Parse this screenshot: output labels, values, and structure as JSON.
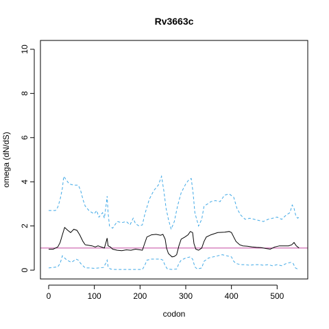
{
  "chart_data": {
    "type": "line",
    "title": "Rv3663c",
    "xlabel": "codon",
    "ylabel": "omega (dN/dS)",
    "xlim": [
      -18,
      567
    ],
    "ylim": [
      -0.4,
      10.4
    ],
    "xticks": [
      0,
      100,
      200,
      300,
      400,
      500
    ],
    "yticks": [
      0,
      2,
      4,
      6,
      8,
      10
    ],
    "grid": false,
    "reference_line": {
      "y": 1,
      "color": "#c2479f"
    },
    "series": [
      {
        "style": "solid",
        "color": "#000000",
        "points": [
          [
            0,
            0.95
          ],
          [
            10,
            0.95
          ],
          [
            20,
            1.05
          ],
          [
            25,
            1.25
          ],
          [
            30,
            1.6
          ],
          [
            35,
            1.93
          ],
          [
            42,
            1.8
          ],
          [
            48,
            1.7
          ],
          [
            55,
            1.85
          ],
          [
            62,
            1.8
          ],
          [
            68,
            1.6
          ],
          [
            75,
            1.3
          ],
          [
            80,
            1.15
          ],
          [
            88,
            1.12
          ],
          [
            95,
            1.1
          ],
          [
            102,
            1.05
          ],
          [
            108,
            1.1
          ],
          [
            115,
            1.05
          ],
          [
            122,
            1.0
          ],
          [
            126,
            1.3
          ],
          [
            128,
            1.45
          ],
          [
            130,
            1.1
          ],
          [
            135,
            1.05
          ],
          [
            140,
            0.95
          ],
          [
            150,
            0.9
          ],
          [
            160,
            0.88
          ],
          [
            170,
            0.92
          ],
          [
            180,
            0.9
          ],
          [
            190,
            0.95
          ],
          [
            200,
            0.92
          ],
          [
            205,
            0.9
          ],
          [
            210,
            1.2
          ],
          [
            215,
            1.5
          ],
          [
            225,
            1.6
          ],
          [
            235,
            1.62
          ],
          [
            245,
            1.58
          ],
          [
            250,
            1.62
          ],
          [
            255,
            1.4
          ],
          [
            258,
            1.0
          ],
          [
            262,
            0.75
          ],
          [
            270,
            0.6
          ],
          [
            275,
            0.62
          ],
          [
            280,
            0.7
          ],
          [
            285,
            1.1
          ],
          [
            290,
            1.4
          ],
          [
            298,
            1.5
          ],
          [
            305,
            1.6
          ],
          [
            310,
            1.75
          ],
          [
            315,
            1.7
          ],
          [
            318,
            1.2
          ],
          [
            322,
            0.95
          ],
          [
            328,
            0.9
          ],
          [
            335,
            1.0
          ],
          [
            340,
            1.3
          ],
          [
            345,
            1.5
          ],
          [
            355,
            1.6
          ],
          [
            370,
            1.7
          ],
          [
            385,
            1.72
          ],
          [
            395,
            1.75
          ],
          [
            400,
            1.7
          ],
          [
            405,
            1.5
          ],
          [
            410,
            1.3
          ],
          [
            418,
            1.15
          ],
          [
            425,
            1.1
          ],
          [
            435,
            1.08
          ],
          [
            445,
            1.05
          ],
          [
            455,
            1.03
          ],
          [
            465,
            1.02
          ],
          [
            475,
            0.98
          ],
          [
            485,
            0.95
          ],
          [
            495,
            1.05
          ],
          [
            505,
            1.1
          ],
          [
            515,
            1.1
          ],
          [
            525,
            1.1
          ],
          [
            532,
            1.15
          ],
          [
            537,
            1.25
          ],
          [
            542,
            1.1
          ],
          [
            548,
            1.0
          ]
        ]
      },
      {
        "style": "dashed",
        "color": "#3fa8e6",
        "points": [
          [
            0,
            2.7
          ],
          [
            15,
            2.7
          ],
          [
            20,
            2.85
          ],
          [
            25,
            3.2
          ],
          [
            30,
            3.7
          ],
          [
            33,
            4.25
          ],
          [
            38,
            4.1
          ],
          [
            45,
            3.9
          ],
          [
            55,
            3.85
          ],
          [
            65,
            3.85
          ],
          [
            70,
            3.6
          ],
          [
            75,
            3.2
          ],
          [
            80,
            2.9
          ],
          [
            88,
            2.7
          ],
          [
            95,
            2.6
          ],
          [
            100,
            2.55
          ],
          [
            105,
            2.7
          ],
          [
            110,
            2.4
          ],
          [
            118,
            2.6
          ],
          [
            122,
            2.35
          ],
          [
            126,
            3.0
          ],
          [
            128,
            3.35
          ],
          [
            130,
            2.6
          ],
          [
            133,
            2.0
          ],
          [
            140,
            1.9
          ],
          [
            150,
            2.2
          ],
          [
            160,
            2.15
          ],
          [
            170,
            2.2
          ],
          [
            178,
            2.05
          ],
          [
            185,
            2.35
          ],
          [
            190,
            2.1
          ],
          [
            198,
            2.0
          ],
          [
            205,
            2.05
          ],
          [
            210,
            2.5
          ],
          [
            220,
            3.2
          ],
          [
            230,
            3.6
          ],
          [
            240,
            3.85
          ],
          [
            247,
            4.25
          ],
          [
            252,
            3.6
          ],
          [
            257,
            2.8
          ],
          [
            262,
            2.3
          ],
          [
            268,
            1.85
          ],
          [
            275,
            2.2
          ],
          [
            282,
            2.9
          ],
          [
            290,
            3.5
          ],
          [
            300,
            3.9
          ],
          [
            307,
            4.1
          ],
          [
            312,
            4.15
          ],
          [
            316,
            3.5
          ],
          [
            320,
            2.6
          ],
          [
            328,
            2.0
          ],
          [
            335,
            2.3
          ],
          [
            340,
            2.9
          ],
          [
            348,
            3.0
          ],
          [
            355,
            3.1
          ],
          [
            365,
            3.15
          ],
          [
            375,
            3.1
          ],
          [
            385,
            3.4
          ],
          [
            395,
            3.45
          ],
          [
            405,
            3.3
          ],
          [
            412,
            2.8
          ],
          [
            420,
            2.5
          ],
          [
            430,
            2.3
          ],
          [
            440,
            2.35
          ],
          [
            450,
            2.3
          ],
          [
            460,
            2.25
          ],
          [
            470,
            2.2
          ],
          [
            480,
            2.3
          ],
          [
            490,
            2.35
          ],
          [
            500,
            2.4
          ],
          [
            510,
            2.3
          ],
          [
            520,
            2.5
          ],
          [
            528,
            2.6
          ],
          [
            533,
            2.95
          ],
          [
            537,
            2.8
          ],
          [
            541,
            2.45
          ],
          [
            545,
            2.35
          ],
          [
            548,
            2.4
          ]
        ]
      },
      {
        "style": "dashed",
        "color": "#3fa8e6",
        "points": [
          [
            0,
            0.1
          ],
          [
            10,
            0.12
          ],
          [
            20,
            0.15
          ],
          [
            25,
            0.3
          ],
          [
            30,
            0.65
          ],
          [
            35,
            0.55
          ],
          [
            40,
            0.45
          ],
          [
            50,
            0.35
          ],
          [
            60,
            0.5
          ],
          [
            65,
            0.45
          ],
          [
            70,
            0.3
          ],
          [
            75,
            0.2
          ],
          [
            80,
            0.1
          ],
          [
            90,
            0.1
          ],
          [
            100,
            0.08
          ],
          [
            110,
            0.1
          ],
          [
            120,
            0.12
          ],
          [
            126,
            0.35
          ],
          [
            128,
            0.45
          ],
          [
            130,
            0.15
          ],
          [
            135,
            0.05
          ],
          [
            145,
            0.03
          ],
          [
            160,
            0.03
          ],
          [
            175,
            0.03
          ],
          [
            190,
            0.03
          ],
          [
            205,
            0.03
          ],
          [
            210,
            0.2
          ],
          [
            215,
            0.45
          ],
          [
            225,
            0.5
          ],
          [
            235,
            0.5
          ],
          [
            245,
            0.5
          ],
          [
            250,
            0.45
          ],
          [
            255,
            0.2
          ],
          [
            260,
            0.05
          ],
          [
            270,
            0.03
          ],
          [
            280,
            0.05
          ],
          [
            285,
            0.3
          ],
          [
            290,
            0.45
          ],
          [
            300,
            0.55
          ],
          [
            310,
            0.6
          ],
          [
            315,
            0.5
          ],
          [
            320,
            0.15
          ],
          [
            325,
            0.05
          ],
          [
            335,
            0.1
          ],
          [
            340,
            0.4
          ],
          [
            350,
            0.55
          ],
          [
            360,
            0.6
          ],
          [
            370,
            0.65
          ],
          [
            380,
            0.7
          ],
          [
            390,
            0.65
          ],
          [
            400,
            0.6
          ],
          [
            405,
            0.4
          ],
          [
            410,
            0.3
          ],
          [
            420,
            0.25
          ],
          [
            430,
            0.25
          ],
          [
            440,
            0.22
          ],
          [
            450,
            0.25
          ],
          [
            460,
            0.25
          ],
          [
            470,
            0.22
          ],
          [
            480,
            0.25
          ],
          [
            490,
            0.2
          ],
          [
            500,
            0.25
          ],
          [
            510,
            0.2
          ],
          [
            520,
            0.3
          ],
          [
            530,
            0.35
          ],
          [
            535,
            0.3
          ],
          [
            540,
            0.1
          ],
          [
            545,
            0.05
          ],
          [
            548,
            0.05
          ]
        ]
      }
    ]
  }
}
